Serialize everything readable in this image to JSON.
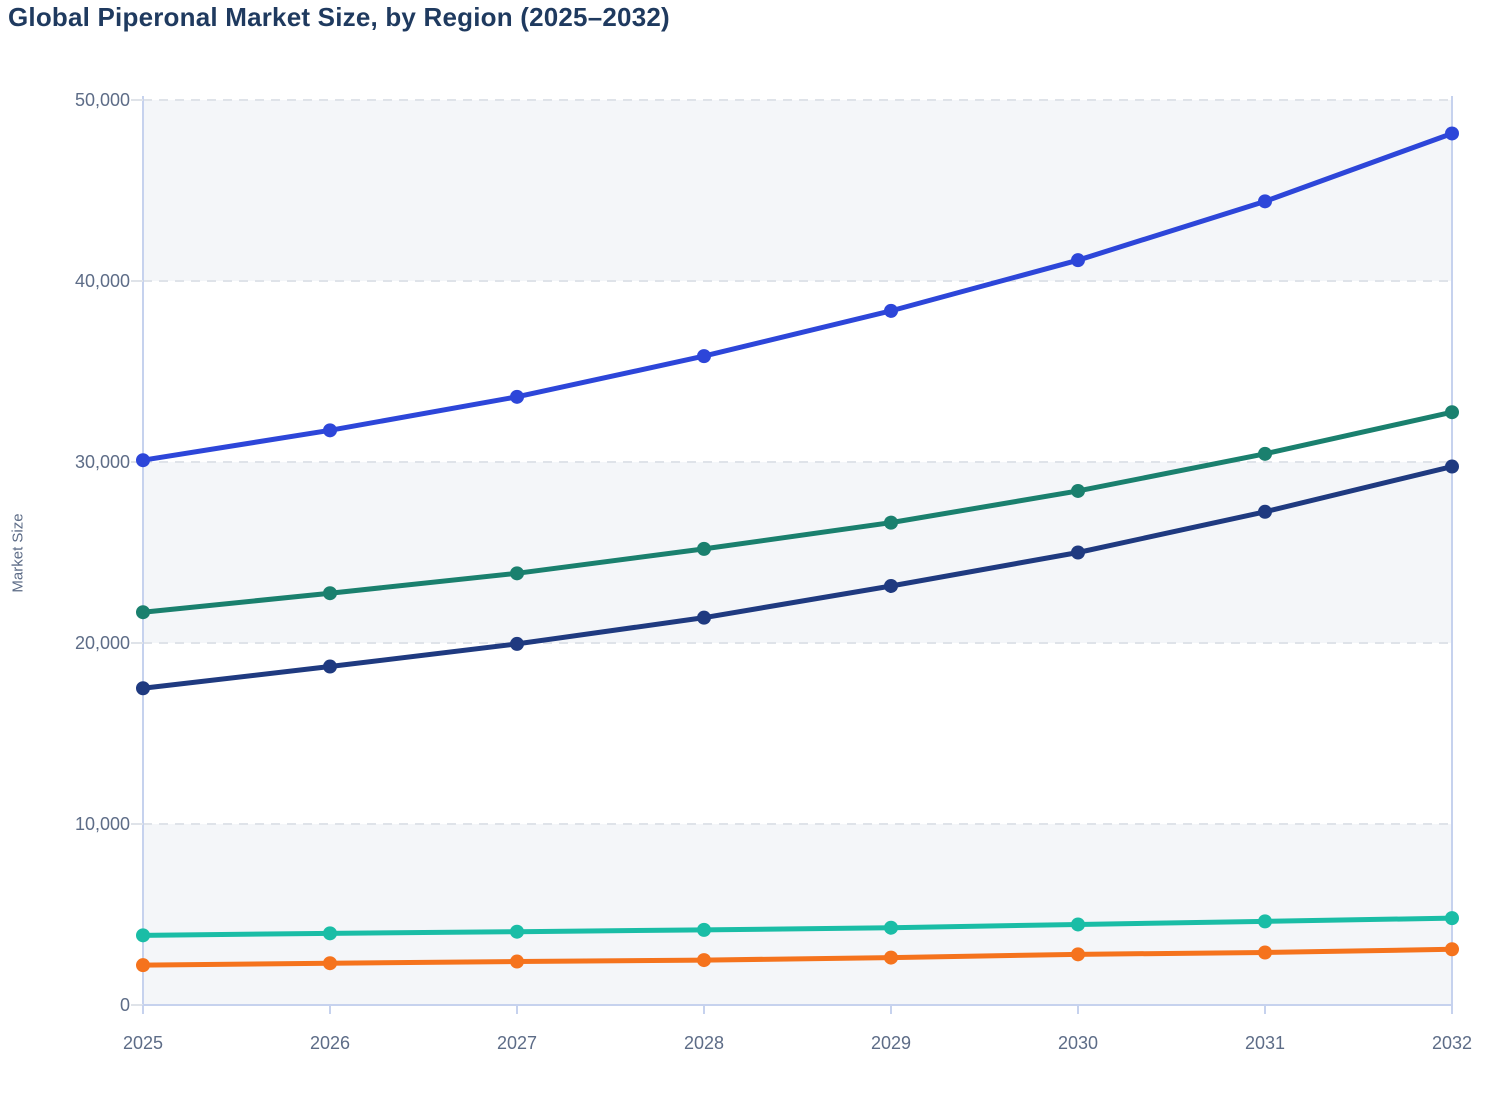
{
  "chart": {
    "title": "Global Piperonal Market Size, by Region (2025–2032)",
    "ylabel": "Market Size"
  },
  "colors": {
    "title_text": "#1f3a5f",
    "tick_text": "#5d6c87",
    "axis_line": "#c6d2ee",
    "gridline": "#dfe3e9",
    "band_fill": "#f4f6f9",
    "background": "#ffffff"
  },
  "chart_data": {
    "type": "line",
    "title": "Global Piperonal Market Size, by Region (2025–2032)",
    "xlabel": "",
    "ylabel": "Market Size",
    "x": [
      2025,
      2026,
      2027,
      2028,
      2029,
      2030,
      2031,
      2032
    ],
    "x_tick_labels": [
      "2025",
      "2026",
      "2027",
      "2028",
      "2029",
      "2030",
      "2031",
      "2032"
    ],
    "ylim": [
      0,
      50000
    ],
    "y_ticks": [
      0,
      10000,
      20000,
      30000,
      40000,
      50000
    ],
    "y_tick_labels": [
      "0",
      "10,000",
      "20,000",
      "30,000",
      "40,000",
      "50,000"
    ],
    "grid": "horizontal-dashed",
    "legend": "none",
    "plot_bands": "alternating light fill on 0-10000, 20000-30000, 40000-50000",
    "marker": "filled-circle",
    "series": [
      {
        "name": "blue",
        "color": "#2d46d9",
        "values": [
          30100,
          31750,
          33600,
          35850,
          38350,
          41150,
          44400,
          48150
        ]
      },
      {
        "name": "dark-teal",
        "color": "#1a806e",
        "values": [
          21700,
          22750,
          23850,
          25200,
          26650,
          28400,
          30450,
          32750
        ]
      },
      {
        "name": "navy",
        "color": "#1f3a80",
        "values": [
          17500,
          18700,
          19950,
          21400,
          23150,
          25000,
          27250,
          29750
        ]
      },
      {
        "name": "turquoise",
        "color": "#1abda6",
        "values": [
          3850,
          3960,
          4050,
          4150,
          4270,
          4450,
          4620,
          4800
        ]
      },
      {
        "name": "orange",
        "color": "#f5731d",
        "values": [
          2200,
          2310,
          2400,
          2480,
          2620,
          2800,
          2900,
          3080
        ]
      }
    ]
  }
}
